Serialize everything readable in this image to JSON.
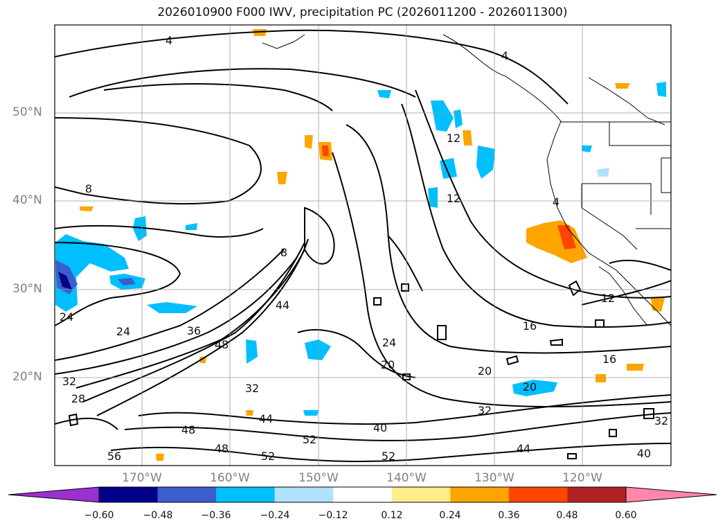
{
  "title": "2026010900 F000 IWV, precipitation PC (2026011200 - 2026011300)",
  "lat_labels": [
    "50°N",
    "40°N",
    "30°N",
    "20°N"
  ],
  "lon_labels": [
    "170°W",
    "160°W",
    "150°W",
    "140°W",
    "130°W",
    "120°W"
  ],
  "colorbar": {
    "colors": [
      "#9b30d0",
      "#00008b",
      "#3a5fcd",
      "#00bfff",
      "#b0e2ff",
      "#ffffff",
      "#ffec8b",
      "#ffa500",
      "#ff4500",
      "#b22222",
      "#ff88aa"
    ],
    "ticks": [
      "−0.60",
      "−0.48",
      "−0.36",
      "−0.24",
      "−0.12",
      "0.12",
      "0.24",
      "0.36",
      "0.48",
      "0.60"
    ]
  },
  "contour_labels": [
    {
      "text": "4"
    },
    {
      "text": "4"
    },
    {
      "text": "4"
    },
    {
      "text": "8"
    },
    {
      "text": "8"
    },
    {
      "text": "12"
    },
    {
      "text": "12"
    },
    {
      "text": "12"
    },
    {
      "text": "16"
    },
    {
      "text": "16"
    },
    {
      "text": "20"
    },
    {
      "text": "20"
    },
    {
      "text": "20"
    },
    {
      "text": "24"
    },
    {
      "text": "24"
    },
    {
      "text": "24"
    },
    {
      "text": "28"
    },
    {
      "text": "32"
    },
    {
      "text": "32"
    },
    {
      "text": "32"
    },
    {
      "text": "32"
    },
    {
      "text": "36"
    },
    {
      "text": "40"
    },
    {
      "text": "40"
    },
    {
      "text": "44"
    },
    {
      "text": "44"
    },
    {
      "text": "44"
    },
    {
      "text": "48"
    },
    {
      "text": "48"
    },
    {
      "text": "48"
    },
    {
      "text": "52"
    },
    {
      "text": "52"
    },
    {
      "text": "52"
    },
    {
      "text": "56"
    }
  ]
}
